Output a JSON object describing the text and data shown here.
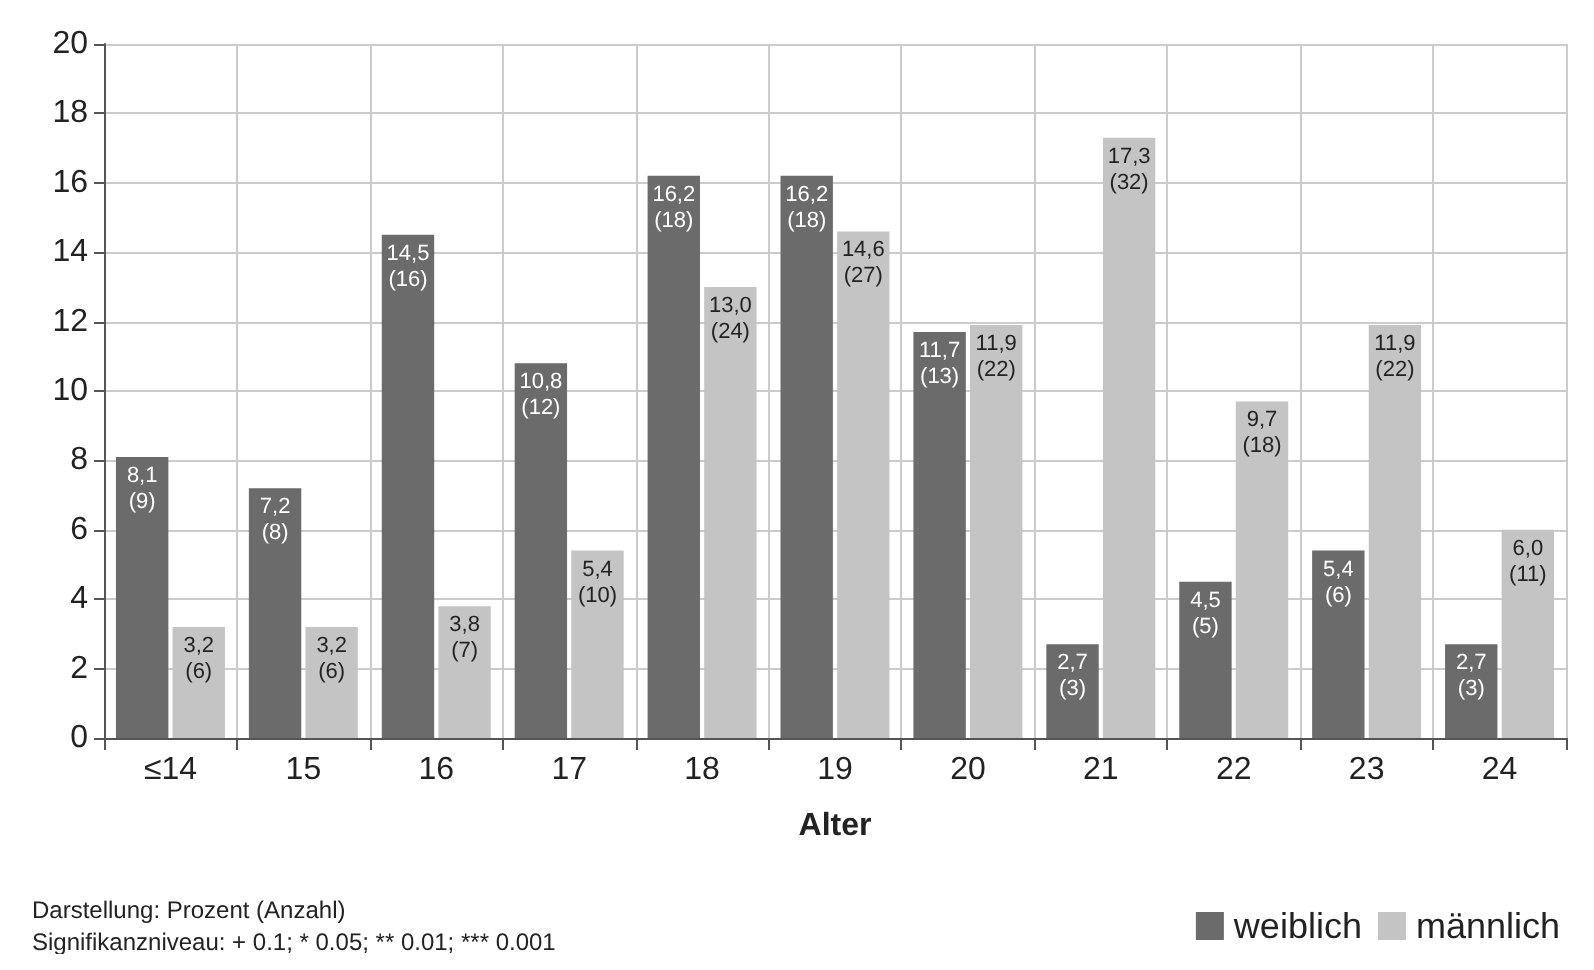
{
  "chart_data": {
    "type": "bar",
    "xlabel": "Alter",
    "categories": [
      "≤14",
      "15",
      "16",
      "17",
      "18",
      "19",
      "20",
      "21",
      "22",
      "23",
      "24"
    ],
    "series": [
      {
        "name": "weiblich",
        "color": "#6b6b6b",
        "values": [
          8.1,
          7.2,
          14.5,
          10.8,
          16.2,
          16.2,
          11.7,
          2.7,
          4.5,
          5.4,
          2.7
        ],
        "value_labels": [
          "8,1\n(9)",
          "7,2\n(8)",
          "14,5\n(16)",
          "10,8\n(12)",
          "16,2\n(18)",
          "16,2\n(18)",
          "11,7\n(13)",
          "2,7\n(3)",
          "4,5\n(5)",
          "5,4\n(6)",
          "2,7\n(3)"
        ]
      },
      {
        "name": "männlich",
        "color": "#c4c4c4",
        "values": [
          3.2,
          3.2,
          3.8,
          5.4,
          13.0,
          14.6,
          11.9,
          17.3,
          9.7,
          11.9,
          6.0
        ],
        "value_labels": [
          "3,2\n(6)",
          "3,2\n(6)",
          "3,8\n(7)",
          "5,4\n(10)",
          "13,0\n(24)",
          "14,6\n(27)",
          "11,9\n(22)",
          "17,3\n(32)",
          "9,7\n(18)",
          "11,9\n(22)",
          "6,0\n(11)"
        ]
      }
    ],
    "ylim": [
      0,
      20
    ],
    "yticks": [
      0,
      2,
      4,
      6,
      8,
      10,
      12,
      14,
      16,
      18,
      20
    ],
    "grid": true,
    "legend": "bottom right",
    "annotations": [
      "Darstellung: Prozent (Anzahl)",
      "Signifikanzniveau: + 0.1; * 0.05; ** 0.01; *** 0.001"
    ]
  }
}
